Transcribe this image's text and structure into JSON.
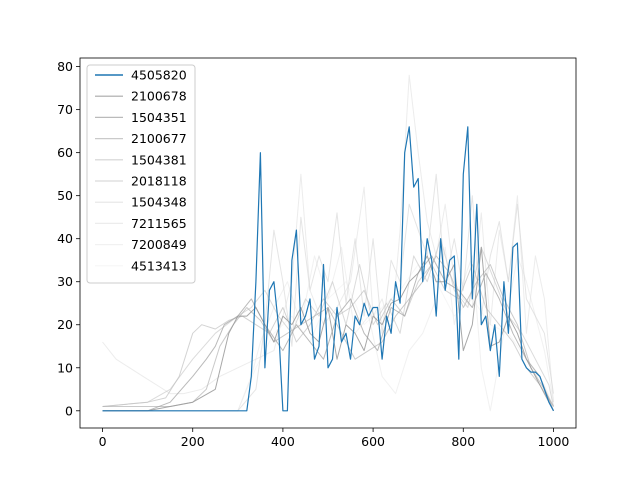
{
  "chart_data": {
    "type": "line",
    "title": "",
    "xlabel": "",
    "ylabel": "",
    "xlim": [
      -50,
      1050
    ],
    "ylim": [
      -4,
      82
    ],
    "xticks": [
      0,
      200,
      400,
      600,
      800,
      1000
    ],
    "yticks": [
      0,
      10,
      20,
      30,
      40,
      50,
      60,
      70,
      80
    ],
    "xtick_labels": [
      "0",
      "200",
      "400",
      "600",
      "800",
      "1000"
    ],
    "ytick_labels": [
      "0",
      "10",
      "20",
      "30",
      "40",
      "50",
      "60",
      "70",
      "80"
    ],
    "grid": false,
    "legend_position": "upper left",
    "series": [
      {
        "name": "4505820",
        "color": "#1f77b4",
        "opacity": 1.0,
        "x": [
          0,
          100,
          200,
          320,
          330,
          340,
          350,
          360,
          370,
          380,
          390,
          400,
          410,
          420,
          430,
          440,
          450,
          460,
          470,
          480,
          490,
          500,
          510,
          520,
          530,
          540,
          550,
          560,
          570,
          580,
          590,
          600,
          610,
          620,
          630,
          640,
          650,
          660,
          670,
          680,
          690,
          700,
          710,
          720,
          730,
          740,
          750,
          760,
          770,
          780,
          790,
          800,
          810,
          820,
          830,
          840,
          850,
          860,
          870,
          880,
          890,
          900,
          910,
          920,
          930,
          940,
          950,
          960,
          970,
          980,
          990,
          1000
        ],
        "y": [
          0,
          0,
          0,
          0,
          8,
          30,
          60,
          10,
          28,
          30,
          20,
          0,
          0,
          35,
          42,
          20,
          22,
          26,
          12,
          15,
          34,
          10,
          12,
          24,
          16,
          18,
          12,
          22,
          20,
          25,
          22,
          24,
          24,
          12,
          22,
          18,
          30,
          25,
          60,
          66,
          52,
          54,
          30,
          40,
          35,
          22,
          40,
          28,
          35,
          36,
          12,
          55,
          66,
          26,
          48,
          20,
          22,
          14,
          20,
          8,
          30,
          18,
          38,
          39,
          12,
          10,
          9,
          9,
          8,
          5,
          2,
          0
        ]
      },
      {
        "name": "2100678",
        "color": "#999999",
        "opacity": 0.85,
        "x": [
          0,
          100,
          200,
          250,
          280,
          300,
          320,
          340,
          360,
          380,
          400,
          420,
          440,
          460,
          480,
          500,
          520,
          540,
          560,
          580,
          600,
          620,
          640,
          660,
          680,
          700,
          720,
          740,
          760,
          780,
          800,
          820,
          840,
          860,
          880,
          900,
          920,
          940,
          960,
          980,
          1000
        ],
        "y": [
          0,
          0,
          2,
          5,
          18,
          22,
          22,
          24,
          20,
          16,
          22,
          20,
          24,
          18,
          16,
          24,
          12,
          20,
          18,
          14,
          22,
          20,
          25,
          26,
          30,
          32,
          36,
          30,
          30,
          34,
          14,
          20,
          38,
          15,
          16,
          22,
          18,
          12,
          8,
          4,
          0
        ]
      },
      {
        "name": "1504351",
        "color": "#a3a3a3",
        "opacity": 0.75,
        "x": [
          0,
          100,
          150,
          200,
          230,
          250,
          270,
          300,
          330,
          360,
          400,
          430,
          460,
          490,
          520,
          550,
          580,
          610,
          640,
          670,
          700,
          730,
          760,
          790,
          820,
          850,
          880,
          910,
          940,
          970,
          1000
        ],
        "y": [
          0,
          0,
          2,
          8,
          12,
          15,
          20,
          22,
          26,
          20,
          14,
          20,
          16,
          12,
          22,
          26,
          18,
          14,
          24,
          22,
          32,
          36,
          30,
          28,
          24,
          32,
          26,
          18,
          12,
          8,
          0
        ]
      },
      {
        "name": "2100677",
        "color": "#b3b3b3",
        "opacity": 0.7,
        "x": [
          0,
          100,
          150,
          200,
          230,
          260,
          290,
          320,
          350,
          380,
          410,
          440,
          470,
          500,
          530,
          560,
          590,
          620,
          650,
          680,
          710,
          740,
          770,
          800,
          830,
          860,
          890,
          920,
          950,
          980,
          1000
        ],
        "y": [
          1,
          1,
          1,
          2,
          5,
          15,
          20,
          24,
          21,
          16,
          18,
          20,
          22,
          24,
          18,
          12,
          14,
          16,
          22,
          26,
          30,
          36,
          32,
          24,
          30,
          34,
          26,
          20,
          10,
          5,
          1
        ]
      },
      {
        "name": "1504381",
        "color": "#c0c0c0",
        "opacity": 0.7,
        "x": [
          0,
          100,
          140,
          170,
          200,
          220,
          250,
          280,
          310,
          340,
          370,
          400,
          430,
          460,
          490,
          520,
          550,
          580,
          610,
          640,
          670,
          700,
          730,
          760,
          790,
          820,
          850,
          880,
          910,
          940,
          970,
          1000
        ],
        "y": [
          1,
          2,
          3,
          8,
          18,
          20,
          19,
          21,
          22,
          20,
          18,
          24,
          16,
          20,
          26,
          22,
          24,
          28,
          20,
          26,
          22,
          30,
          34,
          28,
          26,
          34,
          24,
          20,
          16,
          10,
          6,
          1
        ]
      },
      {
        "name": "2018118",
        "color": "#c8c8c8",
        "opacity": 0.65,
        "x": [
          0,
          100,
          150,
          200,
          250,
          300,
          330,
          360,
          390,
          420,
          450,
          480,
          510,
          540,
          570,
          600,
          630,
          660,
          690,
          720,
          750,
          780,
          810,
          840,
          870,
          900,
          930,
          960,
          990,
          1000
        ],
        "y": [
          1,
          2,
          5,
          12,
          18,
          22,
          24,
          28,
          22,
          18,
          26,
          22,
          30,
          20,
          34,
          20,
          25,
          18,
          36,
          30,
          40,
          28,
          24,
          38,
          30,
          22,
          18,
          12,
          6,
          1
        ]
      },
      {
        "name": "1504348",
        "color": "#d3d3d3",
        "opacity": 0.6,
        "x": [
          0,
          300,
          340,
          360,
          380,
          400,
          420,
          440,
          460,
          480,
          500,
          520,
          540,
          560,
          580,
          600,
          620,
          640,
          660,
          680,
          700,
          720,
          740,
          760,
          780,
          800,
          820,
          840,
          860,
          880,
          900,
          920,
          940,
          960,
          980,
          1000
        ],
        "y": [
          0,
          0,
          5,
          20,
          42,
          30,
          15,
          45,
          28,
          36,
          30,
          46,
          25,
          40,
          22,
          40,
          18,
          35,
          30,
          48,
          42,
          36,
          55,
          30,
          40,
          28,
          50,
          22,
          36,
          44,
          30,
          48,
          26,
          22,
          18,
          4
        ]
      },
      {
        "name": "7211565",
        "color": "#dcdcdc",
        "opacity": 0.55,
        "x": [
          0,
          30,
          60,
          90,
          120,
          150,
          180,
          220,
          260,
          300,
          340,
          380,
          420,
          440,
          460,
          490,
          520,
          550,
          580,
          600,
          620,
          640,
          660,
          680,
          700,
          720,
          740,
          760,
          780,
          800,
          820,
          840,
          860,
          880,
          900,
          920,
          940,
          960,
          980,
          1000
        ],
        "y": [
          16,
          12,
          10,
          8,
          6,
          4,
          4,
          5,
          8,
          10,
          12,
          14,
          30,
          55,
          28,
          20,
          24,
          30,
          52,
          22,
          26,
          18,
          42,
          78,
          60,
          44,
          36,
          48,
          30,
          26,
          24,
          46,
          20,
          42,
          30,
          50,
          18,
          36,
          26,
          2
        ]
      },
      {
        "name": "7200849",
        "color": "#e3e3e3",
        "opacity": 0.5,
        "x": [
          0,
          300,
          330,
          350,
          380,
          410,
          440,
          470,
          500,
          530,
          560,
          590,
          620,
          650,
          680,
          710,
          740,
          760,
          780,
          800,
          820,
          840,
          860,
          880,
          900,
          920,
          940,
          960,
          980,
          1000
        ],
        "y": [
          0,
          0,
          8,
          16,
          24,
          30,
          20,
          36,
          26,
          38,
          18,
          22,
          8,
          4,
          14,
          18,
          26,
          38,
          20,
          30,
          36,
          10,
          0,
          12,
          24,
          36,
          30,
          22,
          14,
          2
        ]
      },
      {
        "name": "4513413",
        "color": "#ebebeb",
        "opacity": 0.45,
        "x": [
          0,
          300,
          340,
          380,
          420,
          460,
          500,
          540,
          580,
          620,
          660,
          700,
          740,
          780,
          820,
          860,
          900,
          940,
          980,
          1000
        ],
        "y": [
          0,
          0,
          10,
          18,
          22,
          16,
          26,
          30,
          20,
          24,
          28,
          34,
          30,
          22,
          26,
          20,
          18,
          12,
          6,
          1
        ]
      }
    ]
  }
}
